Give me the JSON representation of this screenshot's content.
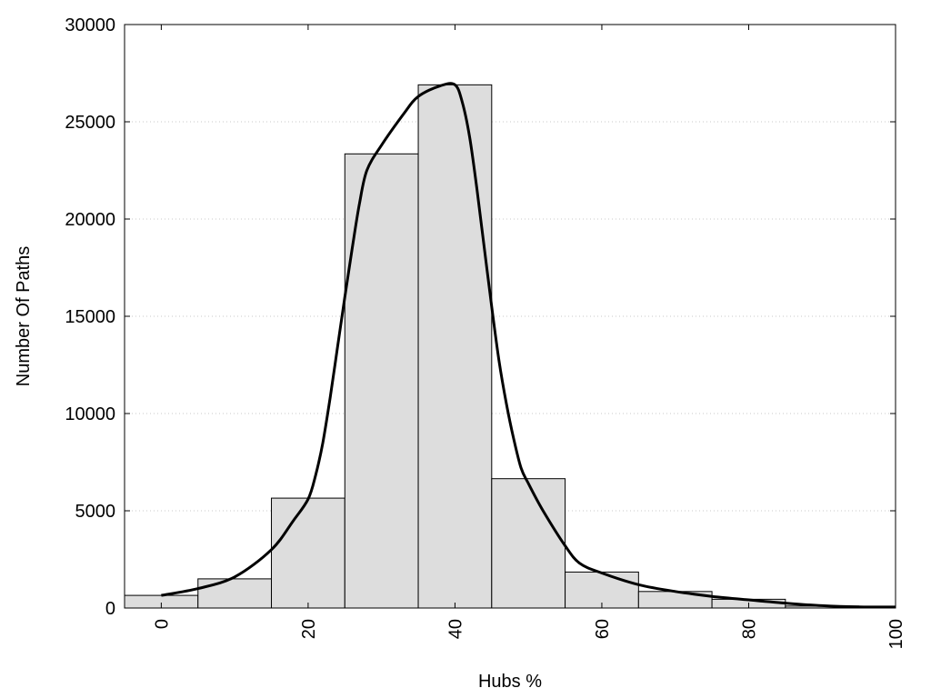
{
  "chart_data": {
    "type": "bar",
    "title": "",
    "xlabel": "Hubs %",
    "ylabel": "Number Of Paths",
    "xlim": [
      -5,
      100
    ],
    "ylim": [
      0,
      30000
    ],
    "grid": "horizontal dotted",
    "legend": "none",
    "bar_color": "#dddddd",
    "bar_edge_color": "#000000",
    "bin_width": 10,
    "x_ticks": [
      0,
      20,
      40,
      60,
      80,
      100
    ],
    "y_ticks": [
      0,
      5000,
      10000,
      15000,
      20000,
      25000,
      30000
    ],
    "bins": [
      {
        "center": 0,
        "value": 650
      },
      {
        "center": 10,
        "value": 1500
      },
      {
        "center": 20,
        "value": 5650
      },
      {
        "center": 30,
        "value": 23350
      },
      {
        "center": 40,
        "value": 26900
      },
      {
        "center": 50,
        "value": 6650
      },
      {
        "center": 60,
        "value": 1850
      },
      {
        "center": 70,
        "value": 850
      },
      {
        "center": 80,
        "value": 450
      },
      {
        "center": 90,
        "value": 100
      }
    ],
    "curve": [
      [
        0,
        650
      ],
      [
        5,
        1000
      ],
      [
        10,
        1600
      ],
      [
        15,
        3000
      ],
      [
        18,
        4500
      ],
      [
        20,
        5600
      ],
      [
        21,
        6800
      ],
      [
        22,
        8500
      ],
      [
        23,
        10800
      ],
      [
        24,
        13400
      ],
      [
        25,
        16000
      ],
      [
        26,
        18500
      ],
      [
        27,
        20800
      ],
      [
        28,
        22500
      ],
      [
        30,
        23800
      ],
      [
        33,
        25400
      ],
      [
        35,
        26300
      ],
      [
        38,
        26850
      ],
      [
        40,
        26900
      ],
      [
        41,
        26000
      ],
      [
        42,
        24200
      ],
      [
        43,
        21500
      ],
      [
        44,
        18500
      ],
      [
        45,
        15500
      ],
      [
        46,
        12700
      ],
      [
        47,
        10500
      ],
      [
        48,
        8700
      ],
      [
        49,
        7200
      ],
      [
        50,
        6400
      ],
      [
        52,
        5000
      ],
      [
        55,
        3200
      ],
      [
        57,
        2300
      ],
      [
        60,
        1800
      ],
      [
        65,
        1200
      ],
      [
        70,
        850
      ],
      [
        75,
        600
      ],
      [
        80,
        420
      ],
      [
        85,
        250
      ],
      [
        90,
        120
      ],
      [
        95,
        60
      ],
      [
        100,
        50
      ]
    ]
  }
}
